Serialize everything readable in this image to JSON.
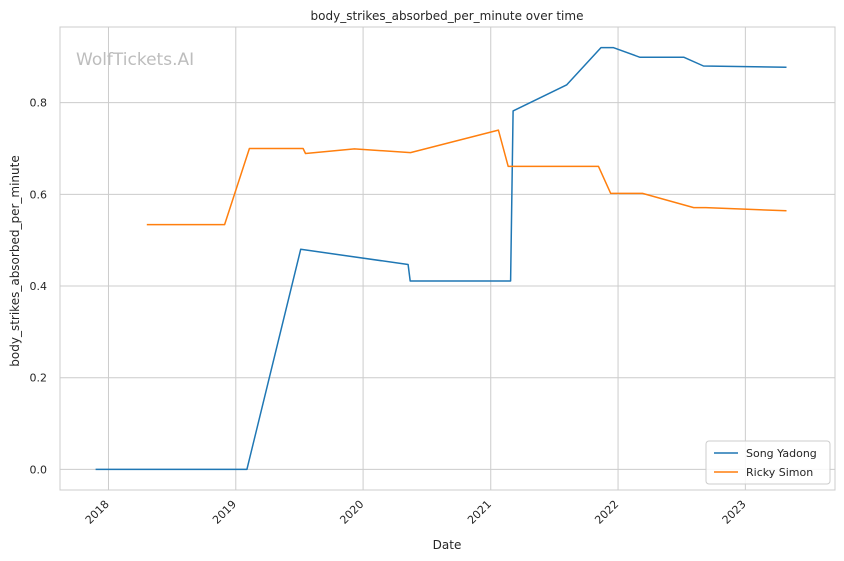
{
  "chart_data": {
    "type": "line",
    "title": "body_strikes_absorbed_per_minute over time",
    "xlabel": "Date",
    "ylabel": "body_strikes_absorbed_per_minute",
    "watermark": "WolfTickets.AI",
    "xlim": [
      "2017-08-15",
      "2023-09-15"
    ],
    "ylim": [
      -0.045,
      0.965
    ],
    "x_ticks": [
      "2018-01-01",
      "2019-01-01",
      "2020-01-01",
      "2021-01-01",
      "2022-01-01",
      "2023-01-01"
    ],
    "x_tick_labels": [
      "2018",
      "2019",
      "2020",
      "2021",
      "2022",
      "2023"
    ],
    "y_ticks": [
      0.0,
      0.2,
      0.4,
      0.6,
      0.8
    ],
    "y_tick_labels": [
      "0.0",
      "0.2",
      "0.4",
      "0.6",
      "0.8"
    ],
    "grid": true,
    "legend_position": "lower-right",
    "series": [
      {
        "name": "Song Yadong",
        "color": "#1f77b4",
        "points": [
          [
            "2017-11-25",
            0.0
          ],
          [
            "2019-02-02",
            0.0
          ],
          [
            "2019-07-06",
            0.48
          ],
          [
            "2020-05-09",
            0.447
          ],
          [
            "2020-05-15",
            0.411
          ],
          [
            "2021-02-27",
            0.411
          ],
          [
            "2021-03-06",
            0.782
          ],
          [
            "2021-08-07",
            0.839
          ],
          [
            "2021-11-13",
            0.92
          ],
          [
            "2021-12-18",
            0.92
          ],
          [
            "2022-03-05",
            0.899
          ],
          [
            "2022-07-09",
            0.899
          ],
          [
            "2022-09-03",
            0.88
          ],
          [
            "2023-04-29",
            0.877
          ]
        ]
      },
      {
        "name": "Ricky Simon",
        "color": "#ff7f0e",
        "points": [
          [
            "2018-04-21",
            0.534
          ],
          [
            "2018-11-30",
            0.534
          ],
          [
            "2019-02-09",
            0.7
          ],
          [
            "2019-07-13",
            0.7
          ],
          [
            "2019-07-20",
            0.689
          ],
          [
            "2019-12-07",
            0.699
          ],
          [
            "2020-05-16",
            0.691
          ],
          [
            "2021-01-23",
            0.74
          ],
          [
            "2021-02-20",
            0.661
          ],
          [
            "2021-11-06",
            0.661
          ],
          [
            "2021-12-11",
            0.602
          ],
          [
            "2022-03-12",
            0.602
          ],
          [
            "2022-08-06",
            0.571
          ],
          [
            "2022-09-10",
            0.571
          ],
          [
            "2023-04-29",
            0.564
          ]
        ]
      }
    ]
  }
}
